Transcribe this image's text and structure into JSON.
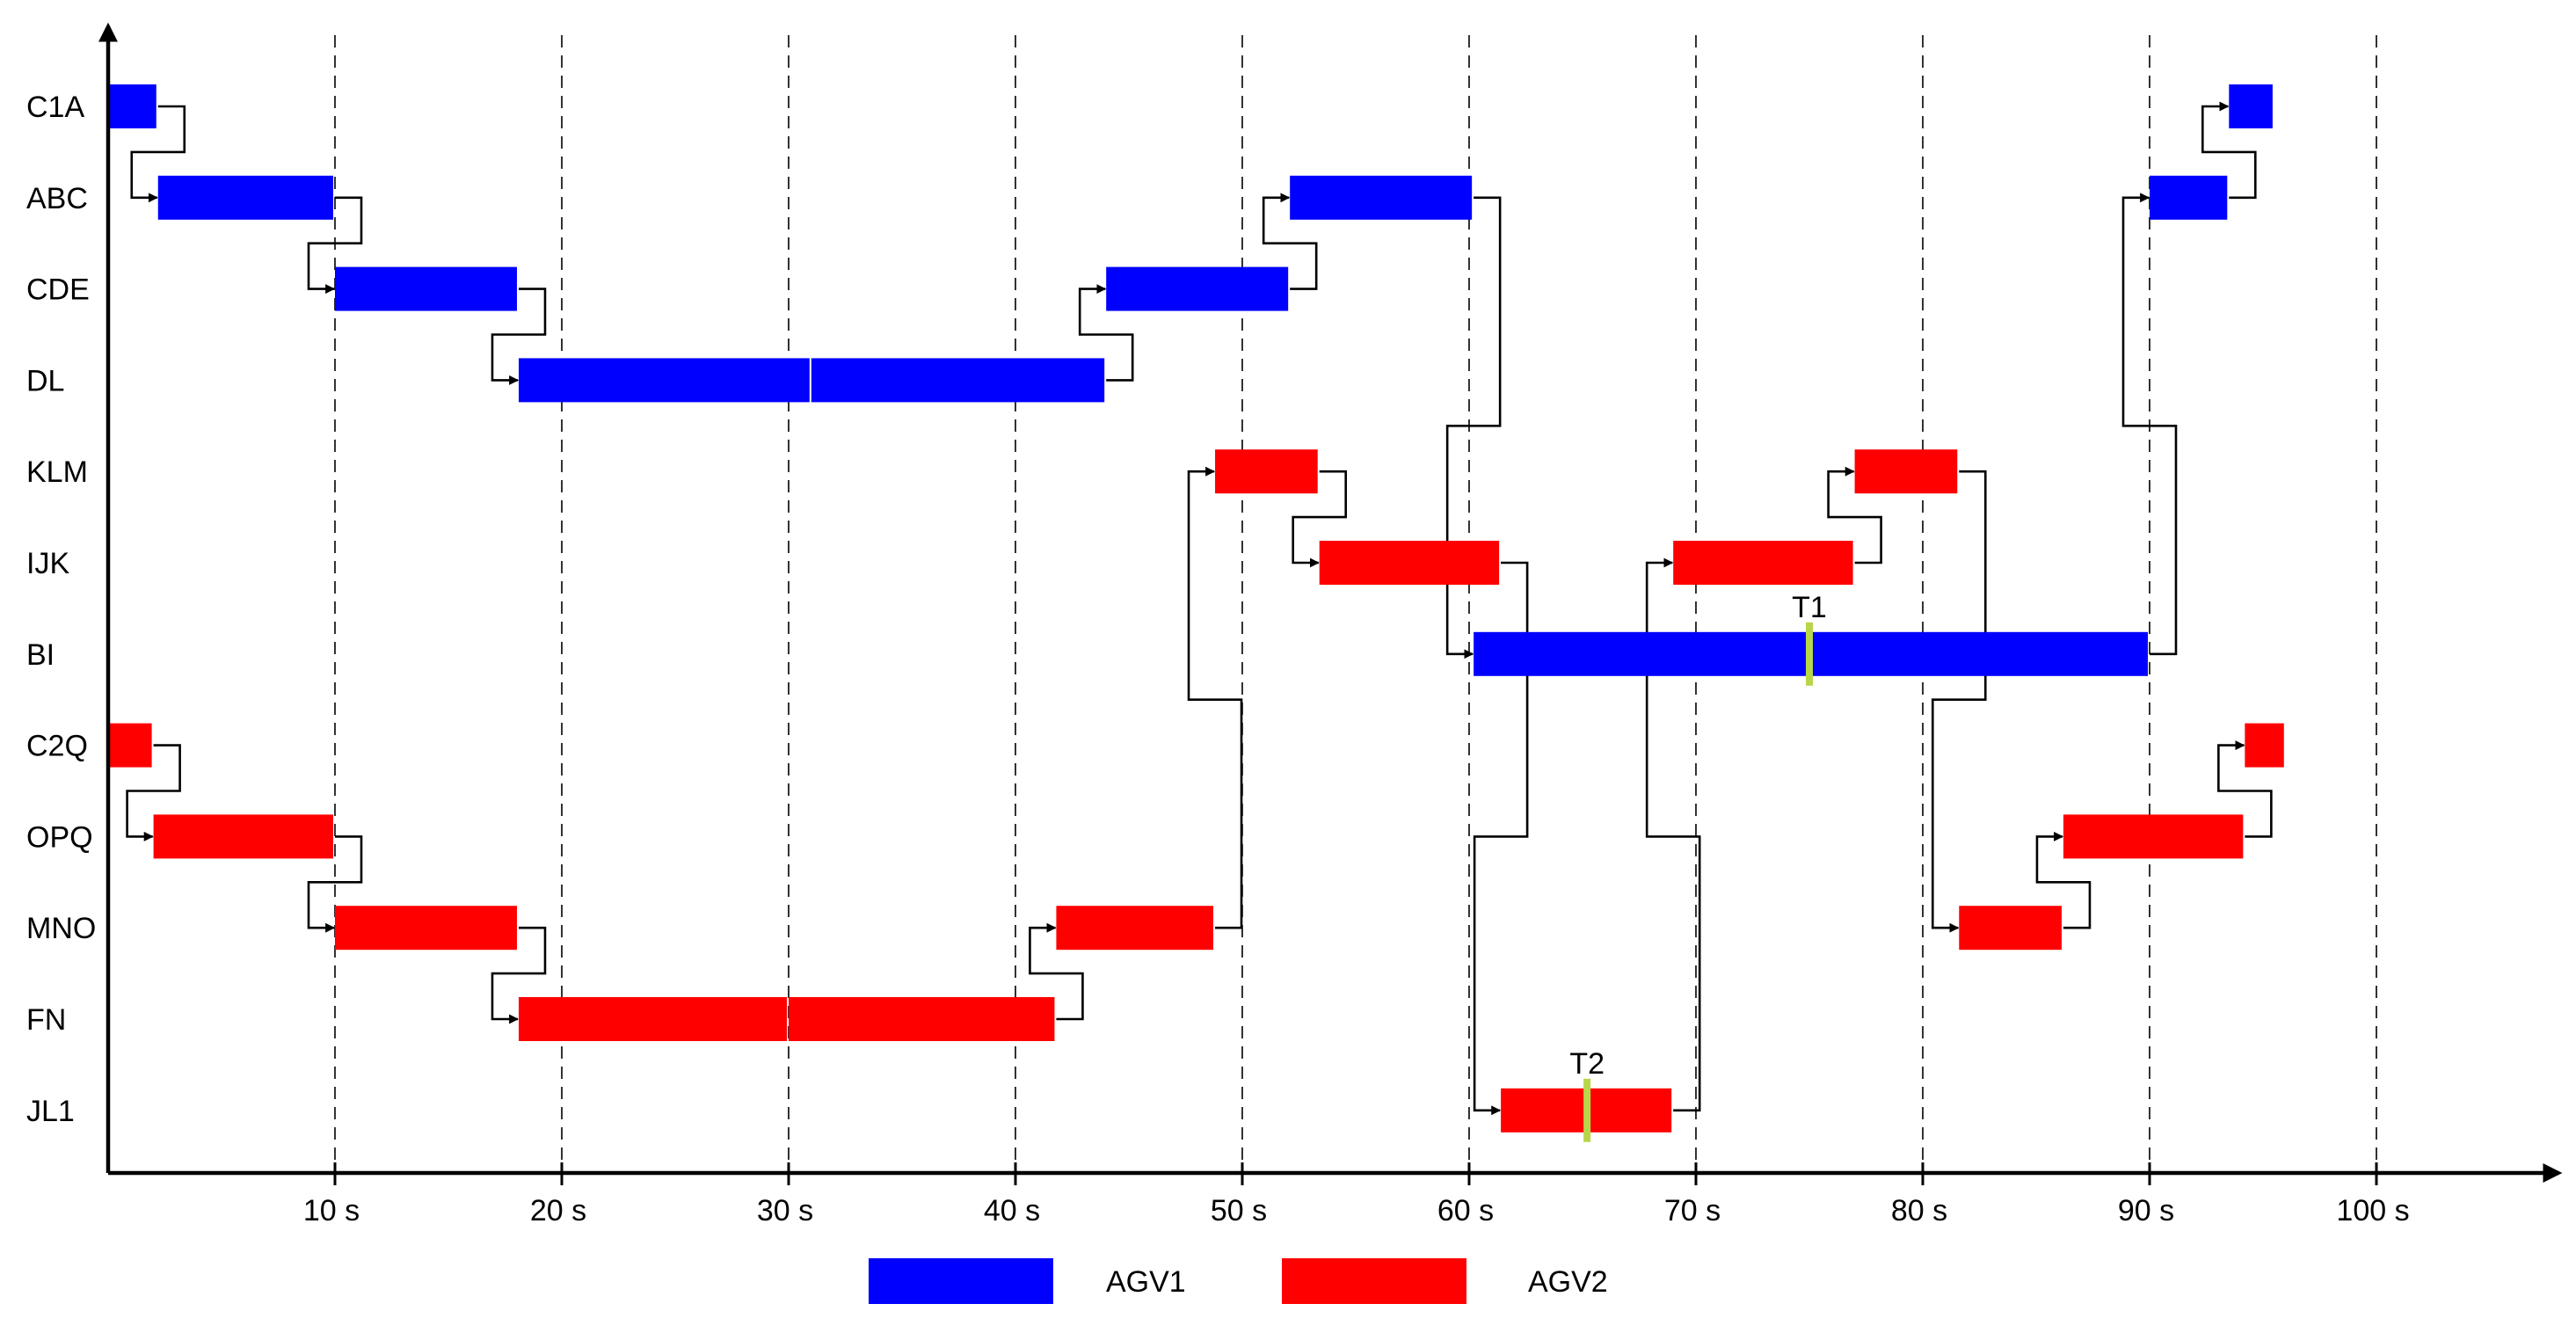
{
  "chart_data": {
    "type": "gantt",
    "title": "",
    "xlabel": "",
    "ylabel": "",
    "xlim": [
      0,
      108
    ],
    "x_ticks": [
      10,
      20,
      30,
      40,
      50,
      60,
      70,
      80,
      90,
      100
    ],
    "x_tick_labels": [
      "10 s",
      "20 s",
      "30 s",
      "40 s",
      "50 s",
      "60 s",
      "70 s",
      "80 s",
      "90 s",
      "100 s"
    ],
    "grid": "vertical dashed lines at each tick",
    "rows": [
      "C1A",
      "ABC",
      "CDE",
      "DL",
      "KLM",
      "IJK",
      "BI",
      "C2Q",
      "OPQ",
      "MNO",
      "FN",
      "JL1"
    ],
    "colors": {
      "AGV1": "#0000ff",
      "AGV2": "#ff0000",
      "marker": "#b8d64a",
      "axis": "#000000"
    },
    "legend": [
      {
        "name": "AGV1",
        "color": "#0000ff"
      },
      {
        "name": "AGV2",
        "color": "#ff0000"
      }
    ],
    "series": [
      {
        "name": "AGV1",
        "color": "#0000ff",
        "tasks": [
          {
            "row": "C1A",
            "start": 0.0,
            "end": 2.2
          },
          {
            "row": "ABC",
            "start": 2.2,
            "end": 10.0
          },
          {
            "row": "CDE",
            "start": 10.0,
            "end": 18.1
          },
          {
            "row": "DL",
            "start": 18.1,
            "end": 31.0
          },
          {
            "row": "DL",
            "start": 31.0,
            "end": 44.0
          },
          {
            "row": "CDE",
            "start": 44.0,
            "end": 52.1
          },
          {
            "row": "ABC",
            "start": 52.1,
            "end": 60.2
          },
          {
            "row": "BI",
            "start": 60.2,
            "end": 90.0
          },
          {
            "row": "ABC",
            "start": 90.0,
            "end": 93.5
          },
          {
            "row": "C1A",
            "start": 93.5,
            "end": 95.5
          }
        ]
      },
      {
        "name": "AGV2",
        "color": "#ff0000",
        "tasks": [
          {
            "row": "C2Q",
            "start": 0.0,
            "end": 2.0
          },
          {
            "row": "OPQ",
            "start": 2.0,
            "end": 10.0
          },
          {
            "row": "MNO",
            "start": 10.0,
            "end": 18.1
          },
          {
            "row": "FN",
            "start": 18.1,
            "end": 30.0
          },
          {
            "row": "FN",
            "start": 30.0,
            "end": 41.8
          },
          {
            "row": "MNO",
            "start": 41.8,
            "end": 48.8
          },
          {
            "row": "KLM",
            "start": 48.8,
            "end": 53.4
          },
          {
            "row": "IJK",
            "start": 53.4,
            "end": 61.4
          },
          {
            "row": "JL1",
            "start": 61.4,
            "end": 69.0
          },
          {
            "row": "IJK",
            "start": 69.0,
            "end": 77.0
          },
          {
            "row": "KLM",
            "start": 77.0,
            "end": 81.6
          },
          {
            "row": "MNO",
            "start": 81.6,
            "end": 86.2
          },
          {
            "row": "OPQ",
            "start": 86.2,
            "end": 94.2
          },
          {
            "row": "C2Q",
            "start": 94.2,
            "end": 96.0
          }
        ]
      }
    ],
    "markers": [
      {
        "label": "T1",
        "row": "BI",
        "x": 75.0
      },
      {
        "label": "T2",
        "row": "JL1",
        "x": 65.2
      }
    ]
  }
}
